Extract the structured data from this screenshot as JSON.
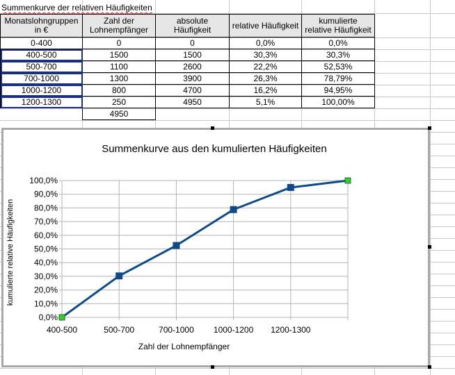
{
  "sheet": {
    "title": "Summenkurve der relativen Häufigkeiten",
    "table": {
      "headers": [
        "Monatslohngruppen\nin €",
        "Zahl der\nLohnempfänger",
        "absolute\nHäufigkeit",
        "relative Häufigkeit",
        "kumulierte\nrelative Häufigkeit"
      ],
      "rows": [
        [
          "0-400",
          "0",
          "0",
          "0,0%",
          "0,0%"
        ],
        [
          "400-500",
          "1500",
          "1500",
          "30,3%",
          "30,3%"
        ],
        [
          "500-700",
          "1100",
          "2600",
          "22,2%",
          "52,53%"
        ],
        [
          "700-1000",
          "1300",
          "3900",
          "26,3%",
          "78,79%"
        ],
        [
          "1000-1200",
          "800",
          "4700",
          "16,2%",
          "94,95%"
        ],
        [
          "1200-1300",
          "250",
          "4950",
          "5,1%",
          "100,00%"
        ]
      ],
      "total": "4950"
    }
  },
  "chart_data": {
    "type": "line",
    "title": "Summenkurve aus den kumulierten Häufigkeiten",
    "xlabel": "Zahl der Lohnempfänger",
    "ylabel": "kumulierte relative Häufigkeiten",
    "categories": [
      "400-500",
      "500-700",
      "700-1000",
      "1000-1200",
      "1200-1300",
      ""
    ],
    "series": [
      {
        "values": [
          0.0,
          30.3,
          52.53,
          78.79,
          94.95,
          100.0
        ]
      }
    ],
    "y_ticks": [
      "0,0%",
      "10,0%",
      "20,0%",
      "30,0%",
      "40,0%",
      "50,0%",
      "60,0%",
      "70,0%",
      "80,0%",
      "90,0%",
      "100,0%"
    ],
    "ylim": [
      0,
      100
    ],
    "grid": true,
    "line_color": "#0d4a8a",
    "selected_point_color": "#33cc33"
  }
}
